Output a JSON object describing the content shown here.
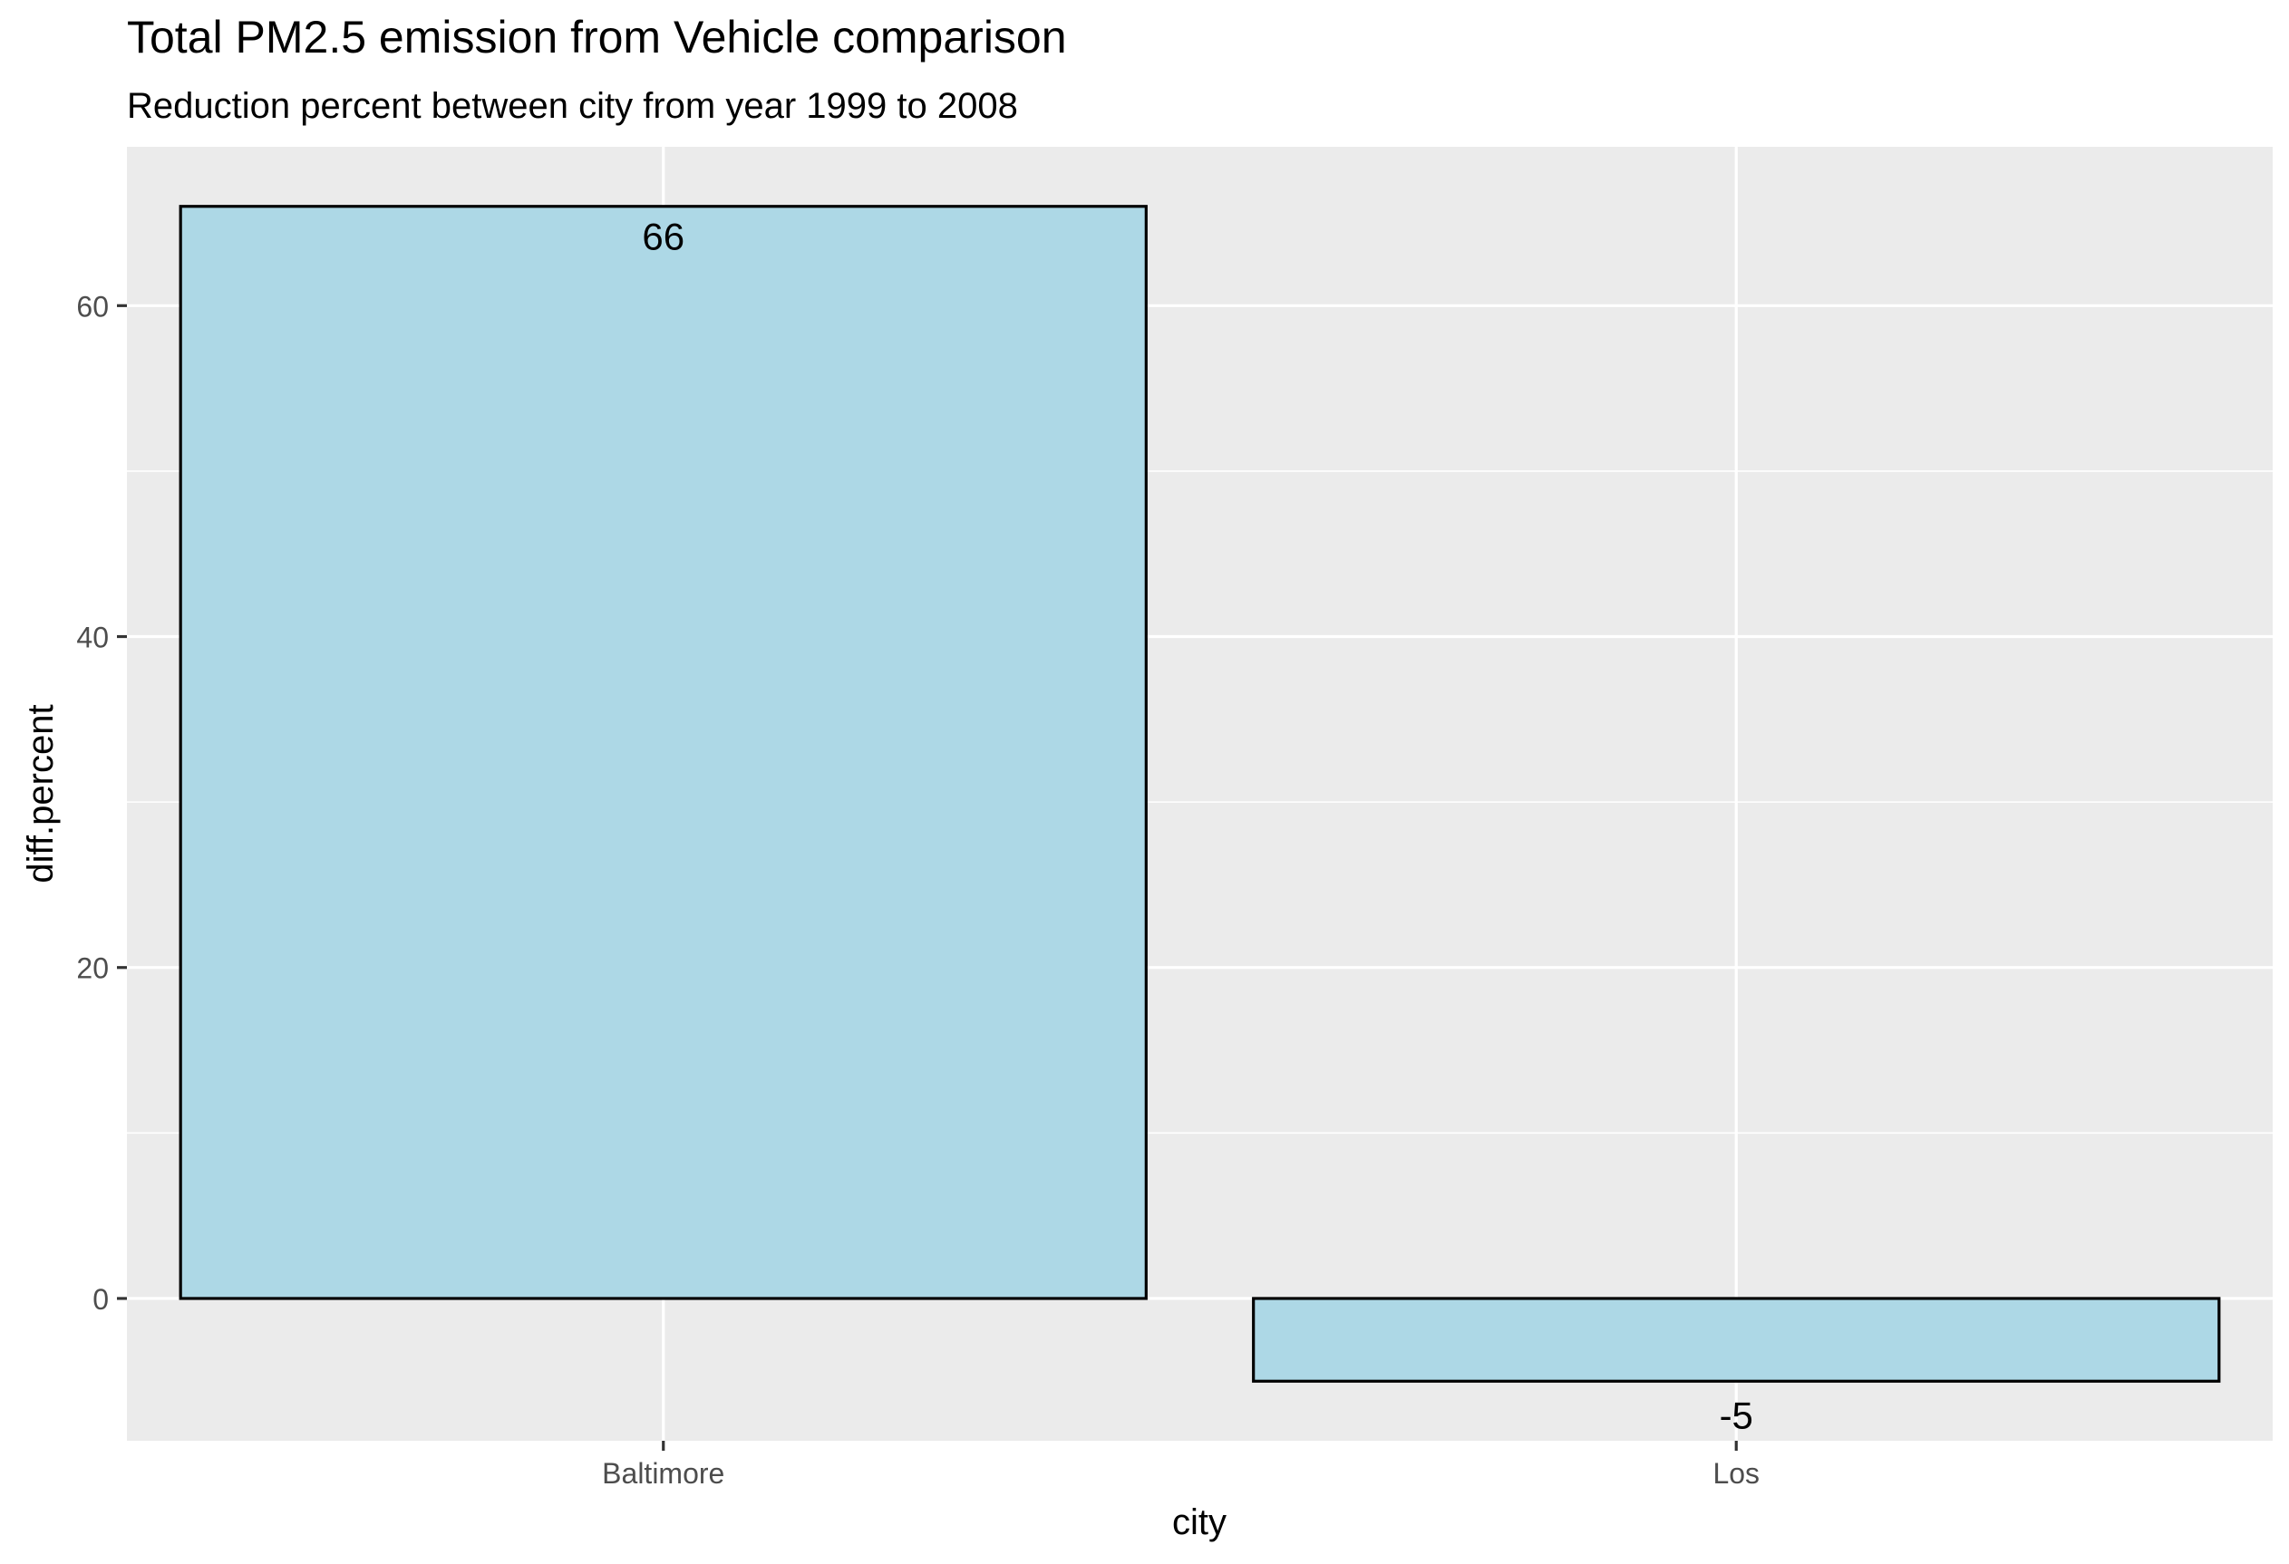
{
  "chart_data": {
    "type": "bar",
    "title": "Total PM2.5 emission from Vehicle comparison",
    "subtitle": "Reduction percent between city from year 1999 to 2008",
    "xlabel": "city",
    "ylabel": "diff.percent",
    "categories": [
      "Baltimore",
      "Los"
    ],
    "values": [
      66,
      -5
    ],
    "data_labels": [
      "66",
      "-5"
    ],
    "ylim": [
      -8.6,
      69.6
    ],
    "yticks": [
      0,
      20,
      40,
      60
    ],
    "ytick_labels": [
      "0",
      "20",
      "40",
      "60"
    ],
    "grid": true,
    "legend": "none",
    "colors": {
      "bar_fill": "#add8e6",
      "bar_stroke": "#000000",
      "panel_background": "#ebebeb",
      "grid": "#ffffff",
      "axis_text": "#4d4d4d",
      "text": "#000000"
    }
  }
}
